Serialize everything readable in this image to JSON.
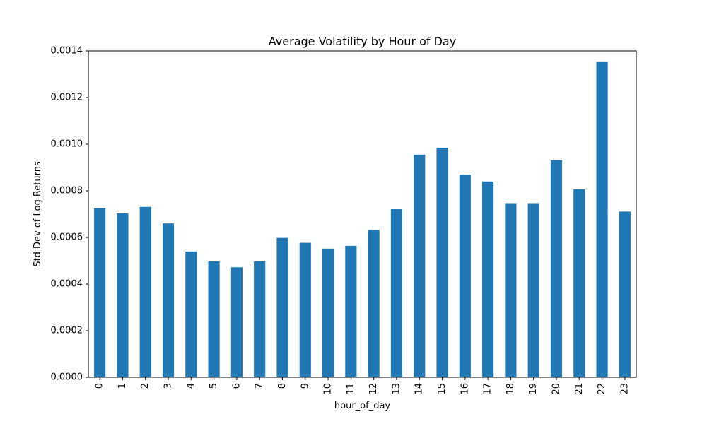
{
  "chart_data": {
    "type": "bar",
    "title": "Average Volatility by Hour of Day",
    "xlabel": "hour_of_day",
    "ylabel": "Std Dev of Log Returns",
    "categories": [
      "0",
      "1",
      "2",
      "3",
      "4",
      "5",
      "6",
      "7",
      "8",
      "9",
      "10",
      "11",
      "12",
      "13",
      "14",
      "15",
      "16",
      "17",
      "18",
      "19",
      "20",
      "21",
      "22",
      "23"
    ],
    "values": [
      0.000725,
      0.000703,
      0.000731,
      0.00066,
      0.00054,
      0.000497,
      0.000472,
      0.000497,
      0.000598,
      0.000577,
      0.000552,
      0.000564,
      0.000632,
      0.000721,
      0.000955,
      0.000985,
      0.000869,
      0.00084,
      0.000747,
      0.000747,
      0.000931,
      0.000806,
      0.001352,
      0.000711
    ],
    "ylim": [
      0,
      0.0014
    ],
    "yticks": [
      "0.0000",
      "0.0002",
      "0.0004",
      "0.0006",
      "0.0008",
      "0.0010",
      "0.0012",
      "0.0014"
    ],
    "bar_color": "#1f77b4",
    "grid": false,
    "legend": false
  }
}
